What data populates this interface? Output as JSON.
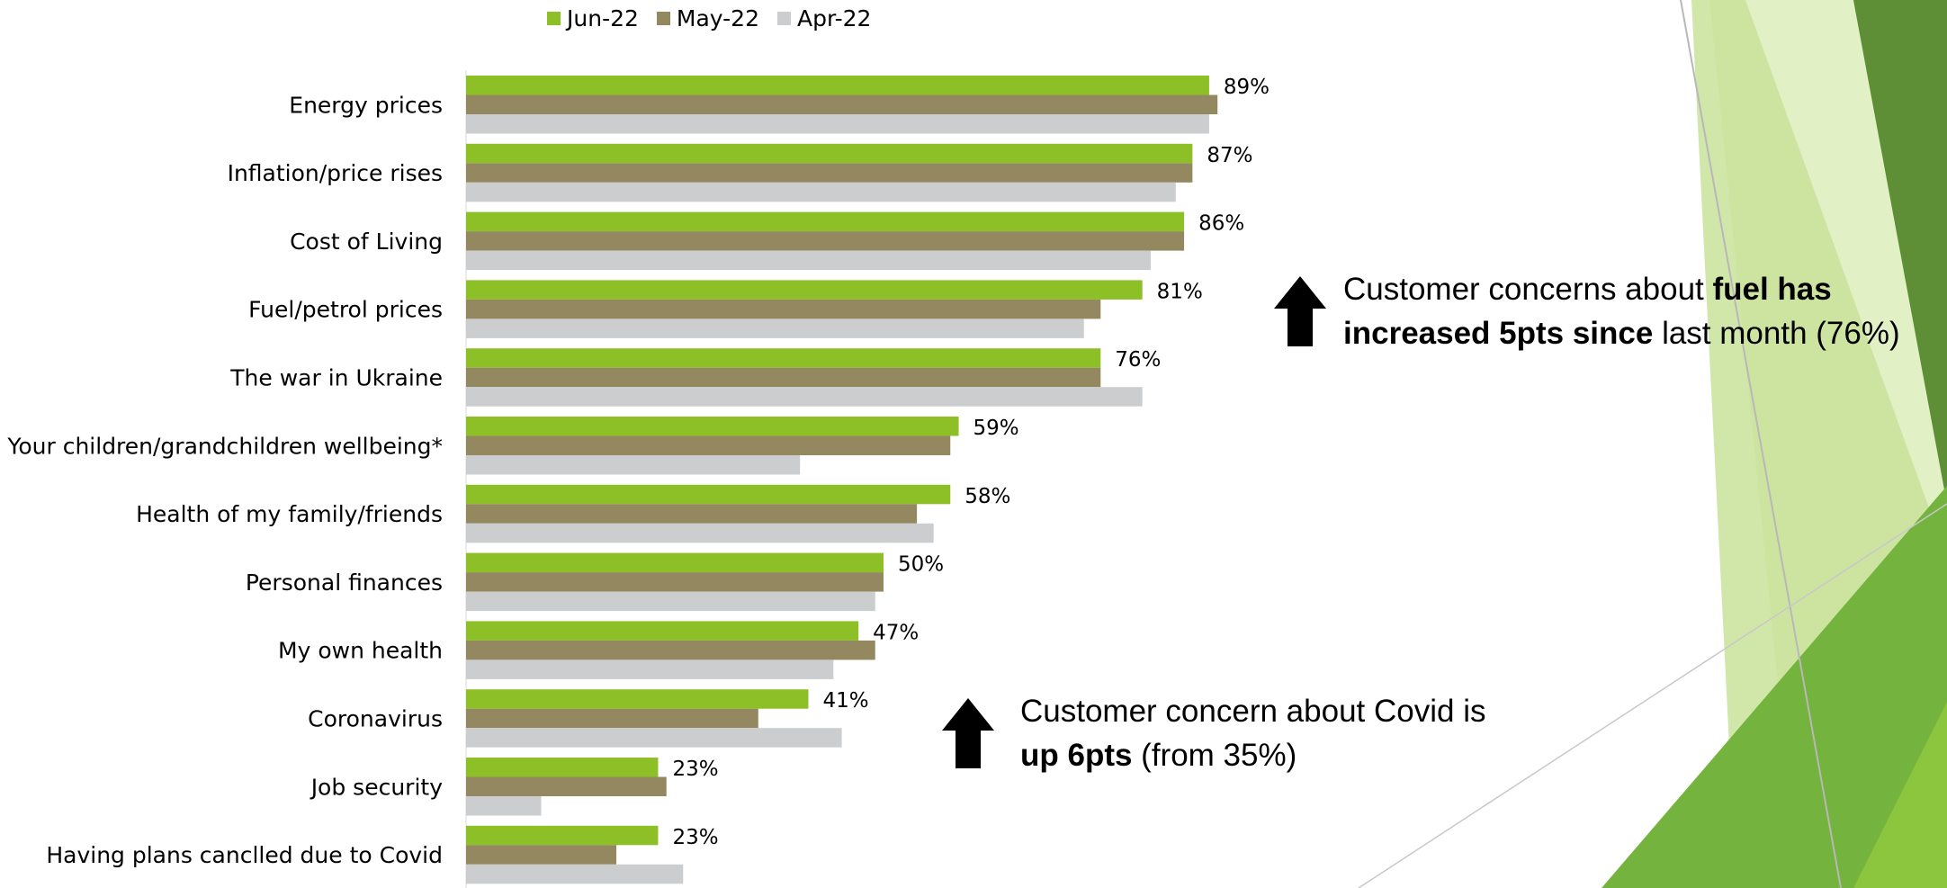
{
  "legend": {
    "items": [
      {
        "label": "Jun-22",
        "color": "#8DC026"
      },
      {
        "label": "May-22",
        "color": "#938860"
      },
      {
        "label": "Apr-22",
        "color": "#CBCDCF"
      }
    ]
  },
  "chart_data": {
    "type": "bar",
    "orientation": "horizontal",
    "title": "",
    "xlabel": "",
    "ylabel": "",
    "xlim": [
      0,
      100
    ],
    "grid": false,
    "legend_position": "top",
    "value_label_series": "Jun-22",
    "value_suffix": "%",
    "categories": [
      "Energy prices",
      "Inflation/price rises",
      "Cost of Living",
      "Fuel/petrol prices",
      "The war in Ukraine",
      "Your children/grandchildren wellbeing*",
      "Health of my family/friends",
      "Personal finances",
      "My own health",
      "Coronavirus",
      "Job security",
      "Having plans canclled due to Covid"
    ],
    "series": [
      {
        "name": "Jun-22",
        "color": "#8DC026",
        "values": [
          89,
          87,
          86,
          81,
          76,
          59,
          58,
          50,
          47,
          41,
          23,
          23
        ]
      },
      {
        "name": "May-22",
        "color": "#938860",
        "values": [
          90,
          87,
          86,
          76,
          76,
          58,
          54,
          50,
          49,
          35,
          24,
          18
        ]
      },
      {
        "name": "Apr-22",
        "color": "#CBCDCF",
        "values": [
          89,
          85,
          82,
          74,
          81,
          40,
          56,
          49,
          44,
          45,
          9,
          26
        ]
      }
    ]
  },
  "annotations": {
    "fuel": {
      "pre": "Customer concerns about ",
      "bold": "fuel has increased 5pts since",
      "post": " last month (76%)"
    },
    "covid": {
      "pre": "Customer concern about Covid is ",
      "bold": "up 6pts",
      "post": " (from 35%)"
    }
  }
}
